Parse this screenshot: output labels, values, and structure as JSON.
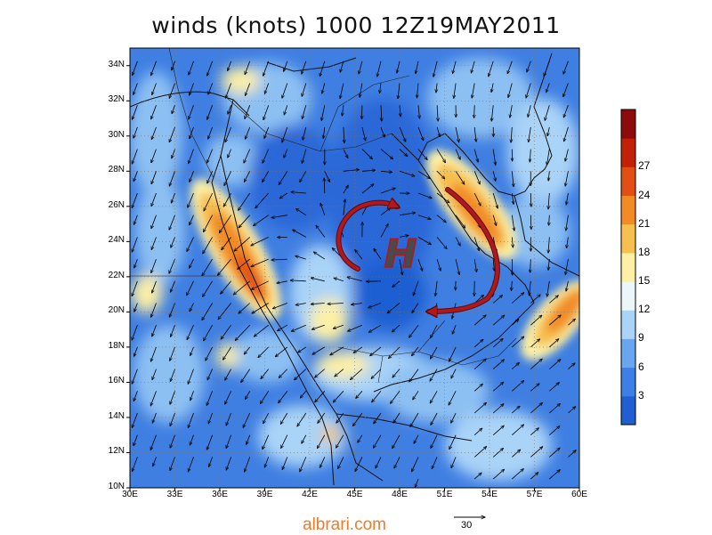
{
  "title": "winds (knots) 1000 12Z19MAY2011",
  "map": {
    "lat_labels": [
      "10N",
      "12N",
      "14N",
      "16N",
      "18N",
      "20N",
      "22N",
      "24N",
      "26N",
      "28N",
      "30N",
      "32N",
      "34N"
    ],
    "lon_labels": [
      "30E",
      "33E",
      "36E",
      "39E",
      "42E",
      "45E",
      "48E",
      "51E",
      "54E",
      "57E",
      "60E"
    ],
    "lon_range": [
      30,
      60
    ],
    "lat_range": [
      10,
      35
    ],
    "annotation_symbol": "H",
    "annotation_color": "#b0181c"
  },
  "colorbar": {
    "labels": [
      "3",
      "6",
      "9",
      "12",
      "15",
      "18",
      "21",
      "24",
      "27"
    ],
    "colors": [
      "#1f5fd2",
      "#3c7fe6",
      "#6aa6ef",
      "#a9d3f7",
      "#eaf6f7",
      "#fdf0a5",
      "#f6bf4f",
      "#f28a25",
      "#e24f14",
      "#c22107",
      "#8e0b0b"
    ]
  },
  "vector_reference": {
    "value": "30"
  },
  "credit": "albrari.com"
}
